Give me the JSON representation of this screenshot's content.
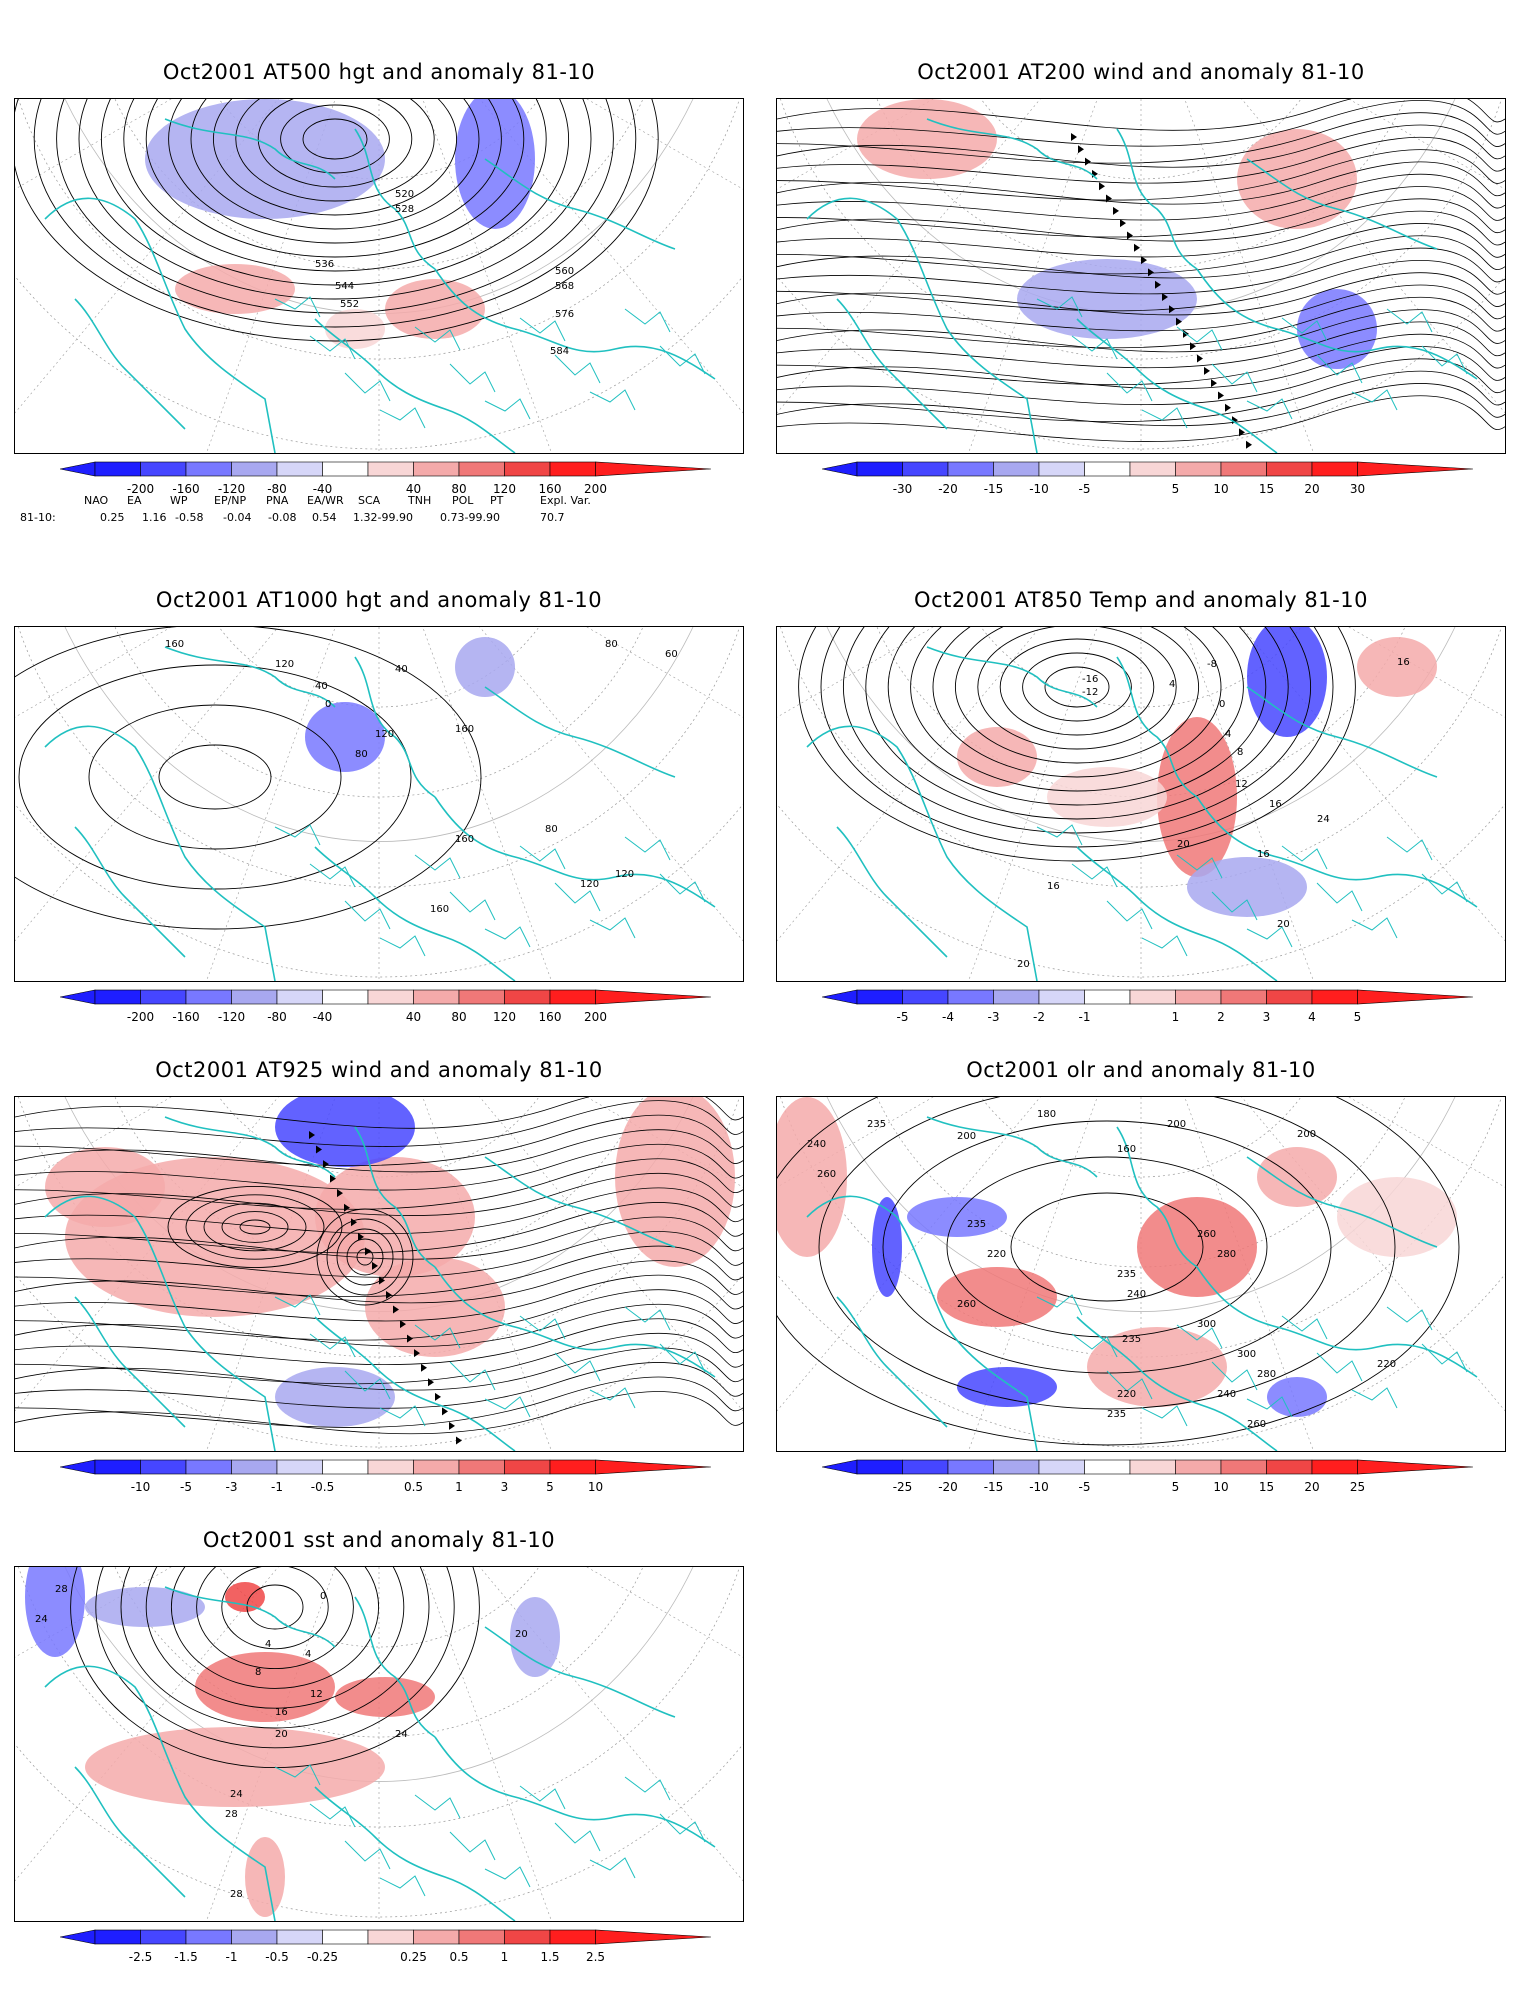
{
  "panels": [
    {
      "id": "p500",
      "title": "Oct2001 AT500 hgt and anomaly 81-10",
      "contour_labels": [
        "520",
        "528",
        "536",
        "544",
        "552",
        "560",
        "568",
        "576",
        "584"
      ],
      "colorbar": [
        "-200",
        "-160",
        "-120",
        "-80",
        "-40",
        "40",
        "80",
        "120",
        "160",
        "200"
      ]
    },
    {
      "id": "p200",
      "title": "Oct2001 AT200 wind and anomaly 81-10",
      "contour_labels": [],
      "colorbar": [
        "-30",
        "-20",
        "-15",
        "-10",
        "-5",
        "5",
        "10",
        "15",
        "20",
        "30"
      ]
    },
    {
      "id": "p1000",
      "title": "Oct2001 AT1000 hgt and anomaly 81-10",
      "contour_labels": [
        "160",
        "120",
        "40",
        "40",
        "0",
        "80",
        "120",
        "160",
        "160",
        "160",
        "80",
        "120",
        "80",
        "60",
        "120"
      ],
      "colorbar": [
        "-200",
        "-160",
        "-120",
        "-80",
        "-40",
        "40",
        "80",
        "120",
        "160",
        "200"
      ]
    },
    {
      "id": "p850",
      "title": "Oct2001 AT850 Temp and anomaly 81-10",
      "contour_labels": [
        "-8",
        "-16",
        "-12",
        "4",
        "0",
        "4",
        "8",
        "12",
        "16",
        "20",
        "16",
        "24",
        "20",
        "16",
        "20",
        "16"
      ],
      "colorbar": [
        "-5",
        "-4",
        "-3",
        "-2",
        "-1",
        "1",
        "2",
        "3",
        "4",
        "5"
      ]
    },
    {
      "id": "p925",
      "title": "Oct2001 AT925 wind and anomaly 81-10",
      "contour_labels": [],
      "colorbar": [
        "-10",
        "-5",
        "-3",
        "-1",
        "-0.5",
        "0.5",
        "1",
        "3",
        "5",
        "10"
      ]
    },
    {
      "id": "polr",
      "title": "Oct2001 olr and anomaly 81-10",
      "contour_labels": [
        "240",
        "235",
        "260",
        "200",
        "180",
        "160",
        "200",
        "235",
        "220",
        "260",
        "235",
        "280",
        "260",
        "300",
        "240",
        "220",
        "235",
        "200",
        "300",
        "280",
        "235",
        "260",
        "240",
        "220"
      ],
      "colorbar": [
        "-25",
        "-20",
        "-15",
        "-10",
        "-5",
        "5",
        "10",
        "15",
        "20",
        "25"
      ]
    },
    {
      "id": "psst",
      "title": "Oct2001 sst and anomaly 81-10",
      "contour_labels": [
        "28",
        "24",
        "0",
        "4",
        "4",
        "8",
        "12",
        "16",
        "20",
        "24",
        "24",
        "28",
        "28",
        "20"
      ],
      "colorbar": [
        "-2.5",
        "-1.5",
        "-1",
        "-0.5",
        "-0.25",
        "0.25",
        "0.5",
        "1",
        "1.5",
        "2.5"
      ]
    }
  ],
  "indices": {
    "names": [
      "NAO",
      "EA",
      "WP",
      "EP/NP",
      "PNA",
      "EA/WR",
      "SCA",
      "TNH",
      "POL",
      "PT",
      "Expl. Var."
    ],
    "row_label": "81-10:",
    "values": [
      "0.25",
      "1.16",
      "-0.58",
      "-0.04",
      "-0.08",
      "0.54",
      "1.32-99.90",
      "0.73-99.90",
      "70.7"
    ]
  },
  "colors": {
    "coast": "#20c0c0",
    "neg": [
      "#1e1eff",
      "#4646ff",
      "#7878ff",
      "#a8a8f0",
      "#d6d6f8"
    ],
    "pos": [
      "#f8d6d6",
      "#f4aaaa",
      "#f07878",
      "#f04646",
      "#ff1e1e"
    ]
  }
}
